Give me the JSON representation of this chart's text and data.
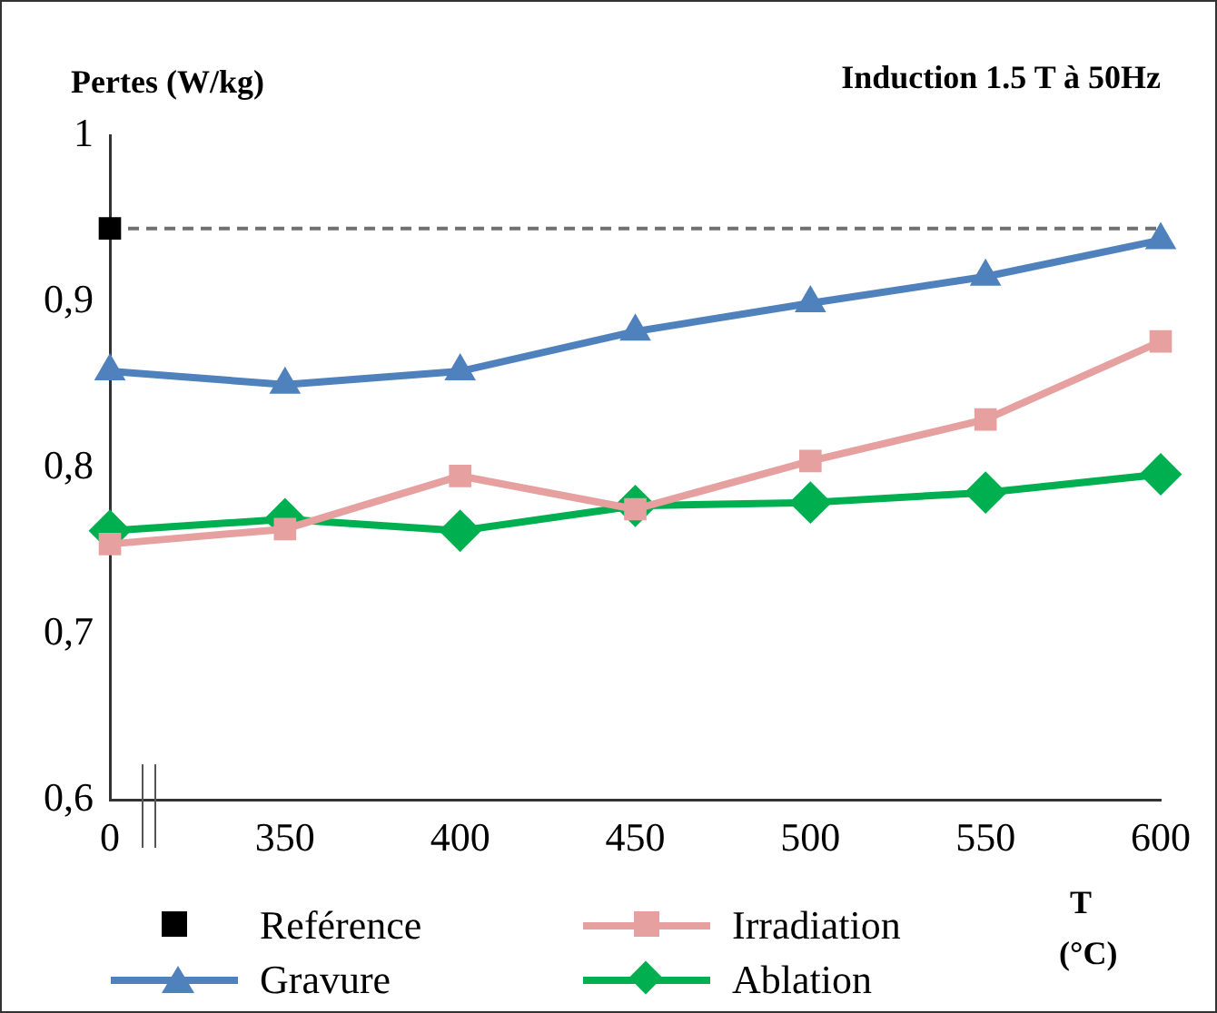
{
  "chart_data": {
    "type": "line",
    "title": "Induction 1.5 T à 50Hz",
    "ylabel": "Pertes (W/kg)",
    "xlabel": "T (°C)",
    "categories": [
      "0",
      "350",
      "400",
      "450",
      "500",
      "550",
      "600"
    ],
    "ylim": [
      0.6,
      1
    ],
    "yticks": [
      {
        "value": 0.6,
        "label": "0,6"
      },
      {
        "value": 0.7,
        "label": "0,7"
      },
      {
        "value": 0.8,
        "label": "0,8"
      },
      {
        "value": 0.9,
        "label": "0,9"
      },
      {
        "value": 1,
        "label": "1"
      }
    ],
    "grid": false,
    "legend": "bottom",
    "line_style": "solid",
    "ref_lines": [
      {
        "axis": "y",
        "value": 0.944,
        "label": null,
        "color": "#707070",
        "line_style": "dashed"
      }
    ],
    "series": [
      {
        "name": "Reférence",
        "type": "scatter",
        "marker": "square",
        "color": "#000000",
        "values": [
          0.944,
          null,
          null,
          null,
          null,
          null,
          null
        ]
      },
      {
        "name": "Irradiation",
        "marker": "square",
        "color": "#e6a0a0",
        "values": [
          0.754,
          0.763,
          0.795,
          0.775,
          0.804,
          0.829,
          0.876
        ]
      },
      {
        "name": "Gravure",
        "marker": "triangle",
        "color": "#4f81bd",
        "values": [
          0.858,
          0.85,
          0.858,
          0.882,
          0.899,
          0.915,
          0.937
        ]
      },
      {
        "name": "Ablation",
        "marker": "diamond",
        "color": "#00b050",
        "values": [
          0.762,
          0.769,
          0.762,
          0.777,
          0.779,
          0.785,
          0.796
        ]
      }
    ]
  }
}
